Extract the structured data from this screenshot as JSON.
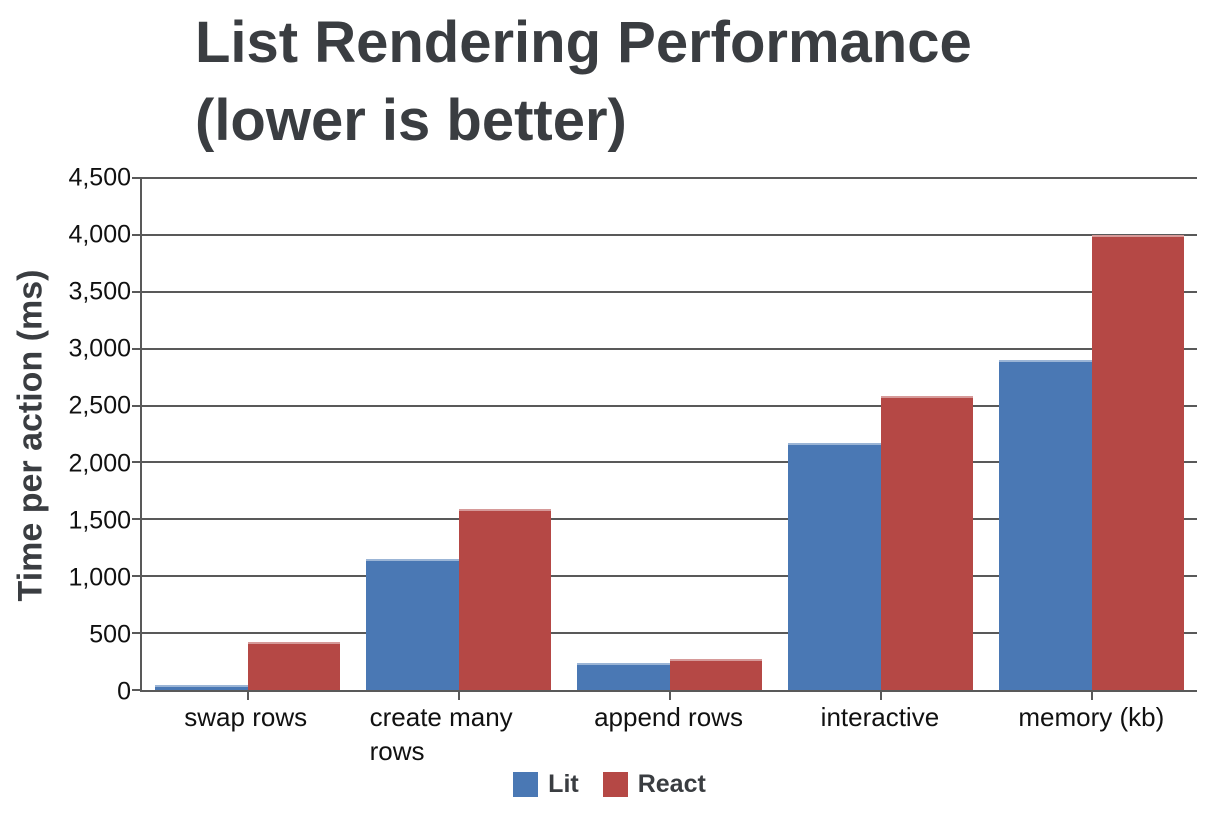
{
  "chart_data": {
    "type": "bar",
    "title_lines": [
      "List Rendering Performance",
      "(lower is better)"
    ],
    "title": "List Rendering Performance (lower is better)",
    "ylabel": "Time per action (ms)",
    "xlabel": "",
    "categories": [
      "swap rows",
      "create many rows",
      "append rows",
      "interactive",
      "memory (kb)"
    ],
    "series": [
      {
        "name": "Lit",
        "color": "#4a78b4",
        "values": [
          40,
          1150,
          240,
          2175,
          2900
        ]
      },
      {
        "name": "React",
        "color": "#b54845",
        "values": [
          420,
          1590,
          275,
          2580,
          4000
        ]
      }
    ],
    "ylim": [
      0,
      4500
    ],
    "ytick_values": [
      0,
      500,
      1000,
      1500,
      2000,
      2500,
      3000,
      3500,
      4000,
      4500
    ],
    "ytick_labels": [
      "0",
      "500",
      "1,000",
      "1,500",
      "2,000",
      "2,500",
      "3,000",
      "3,500",
      "4,000",
      "4,500"
    ],
    "grid": true,
    "gridline_color": "#595959",
    "text_color": "#3a3d41",
    "legend_position": "bottom"
  }
}
